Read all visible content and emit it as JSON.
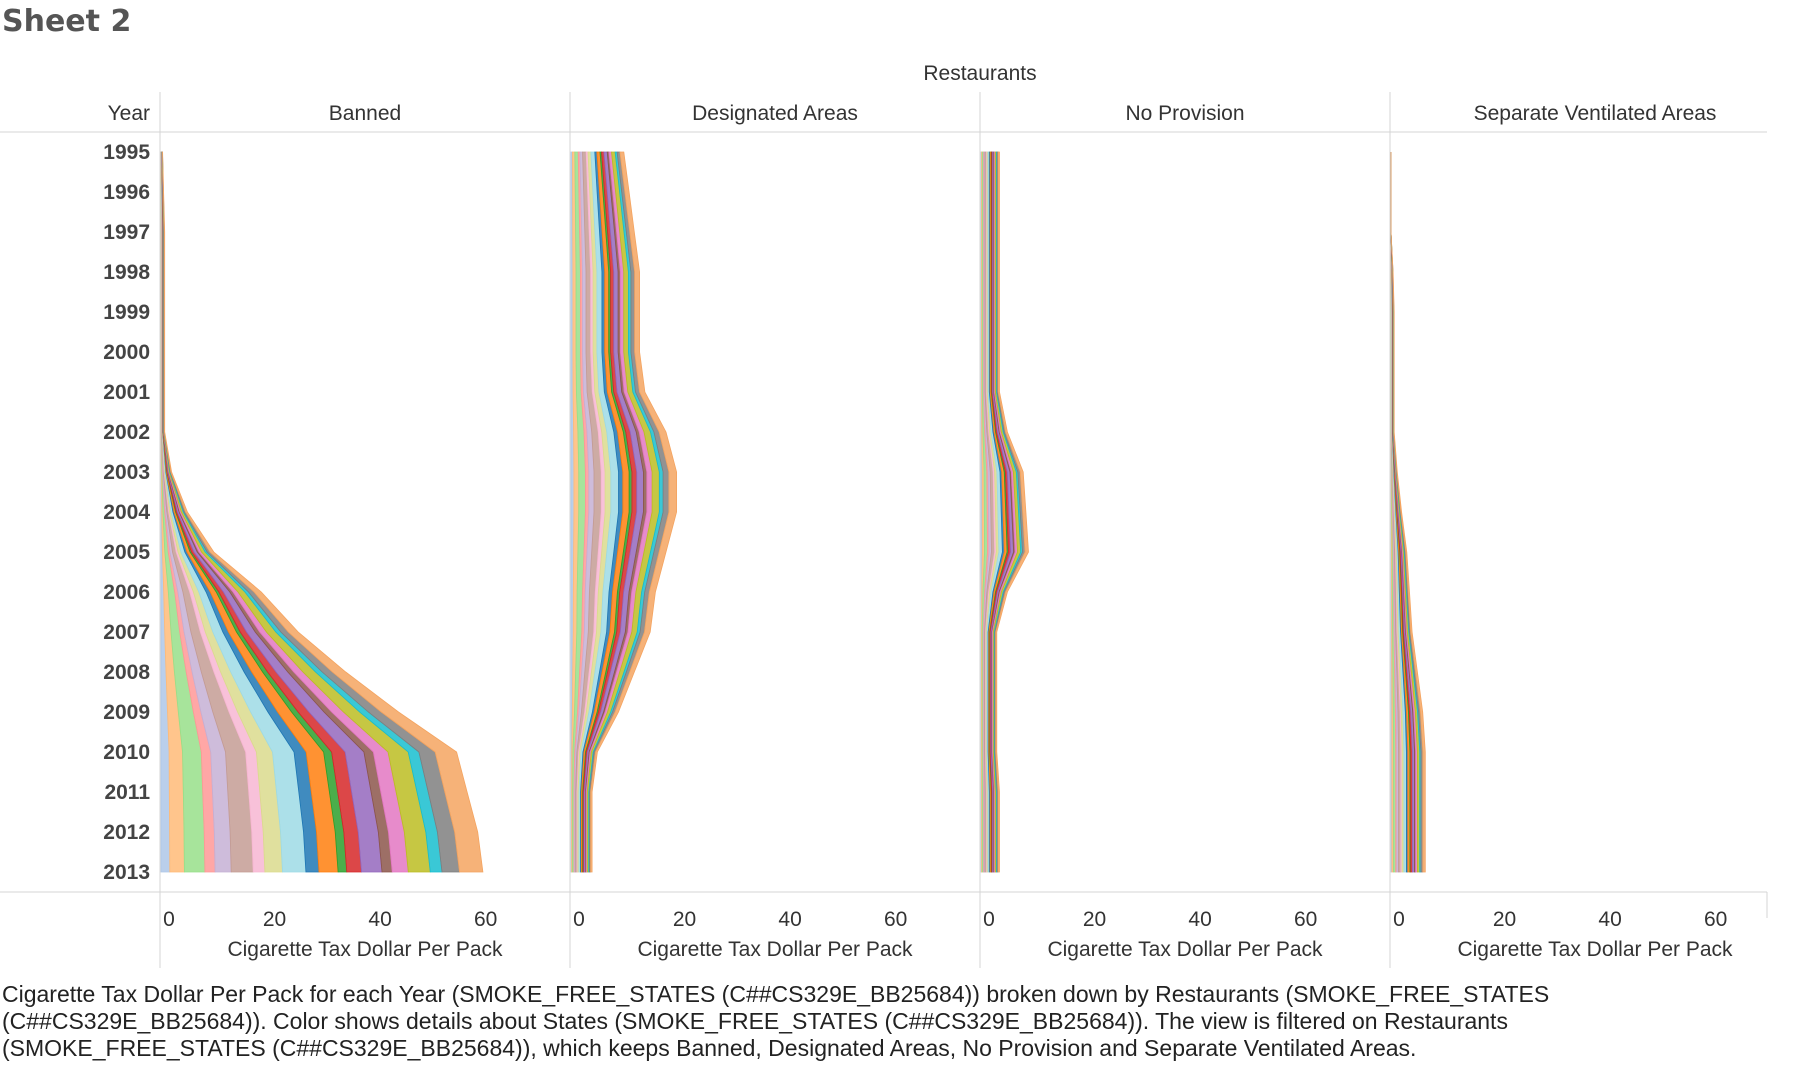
{
  "sheet": {
    "title": "Sheet 2"
  },
  "chart_data": {
    "type": "area",
    "column_header": "Restaurants",
    "row_header": "Year",
    "panels": [
      "Banned",
      "Designated Areas",
      "No Provision",
      "Separate Ventilated Areas"
    ],
    "years": [
      1995,
      1996,
      1997,
      1998,
      1999,
      2000,
      2001,
      2002,
      2003,
      2004,
      2005,
      2006,
      2007,
      2008,
      2009,
      2010,
      2011,
      2012,
      2013
    ],
    "xlabel": "Cigarette Tax Dollar Per Pack",
    "x_ticks": [
      0,
      20,
      40,
      60
    ],
    "xlim": [
      0,
      72
    ],
    "color_legend": "States",
    "palette": [
      "#aec7e8",
      "#ffbb78",
      "#98df8a",
      "#ff9896",
      "#c5b0d5",
      "#c49c94",
      "#f7b6d2",
      "#dbdb8d",
      "#9edae5",
      "#1f77b4",
      "#ff7f0e",
      "#2ca02c",
      "#d62728",
      "#9467bd",
      "#8c564b",
      "#e377c2",
      "#bcbd22",
      "#17becf",
      "#7f7f7f",
      "#f4a460"
    ],
    "panel_totals": [
      [
        0.3,
        0.5,
        0.7,
        0.7,
        0.7,
        0.7,
        0.7,
        0.7,
        2,
        5,
        10,
        19,
        26,
        35,
        45,
        56,
        58,
        60,
        61
      ],
      [
        10,
        11,
        12,
        13,
        13,
        13,
        14,
        18,
        20,
        20,
        18,
        16,
        15,
        12,
        9,
        5,
        4,
        4,
        4
      ],
      [
        3.5,
        3.5,
        3.5,
        3.5,
        3.5,
        3.5,
        3.5,
        5,
        8,
        8.5,
        9,
        5,
        3,
        3,
        3,
        3,
        3.5,
        3.5,
        3.5
      ],
      [
        0,
        0,
        0,
        0.4,
        0.6,
        0.6,
        0.6,
        0.6,
        1.2,
        2,
        3,
        3.5,
        4,
        5,
        6,
        6.5,
        6.5,
        6.5,
        6.5
      ]
    ],
    "grid": false,
    "legend_placement": "none"
  },
  "caption": {
    "text": "Cigarette Tax Dollar Per Pack for each Year (SMOKE_FREE_STATES (C##CS329E_BB25684)) broken down by Restaurants (SMOKE_FREE_STATES (C##CS329E_BB25684)).  Color shows details about States (SMOKE_FREE_STATES (C##CS329E_BB25684)). The view is filtered on Restaurants (SMOKE_FREE_STATES (C##CS329E_BB25684)), which keeps Banned, Designated Areas, No Provision and Separate Ventilated Areas."
  }
}
